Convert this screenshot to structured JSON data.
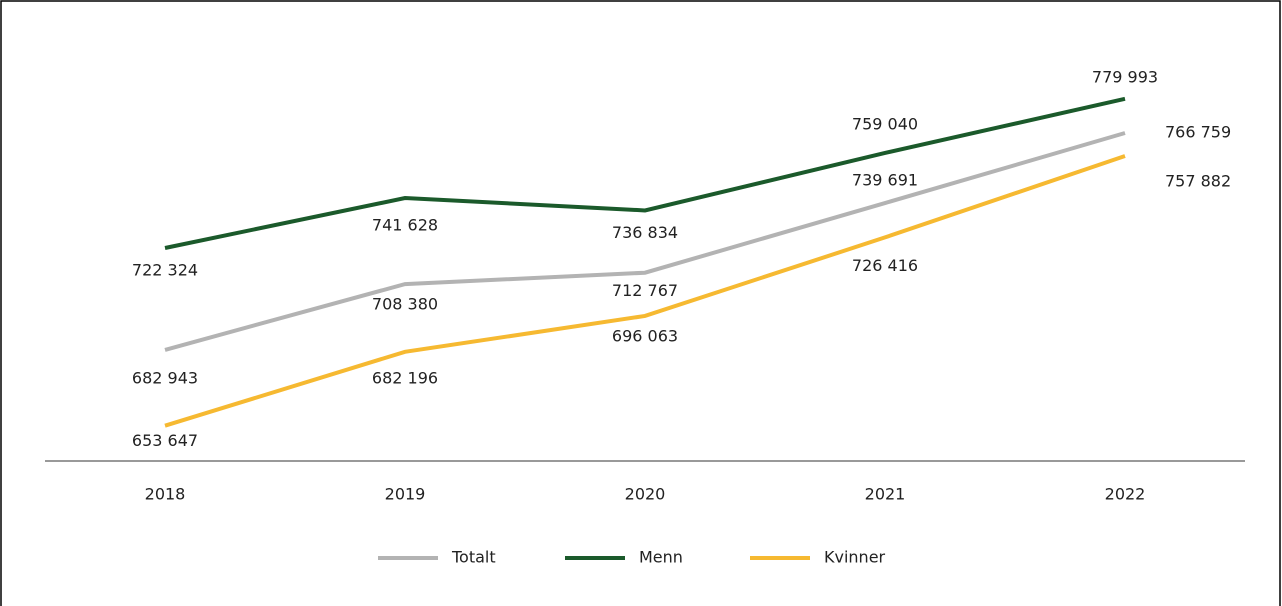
{
  "chart_data": {
    "type": "line",
    "x": [
      "2018",
      "2019",
      "2020",
      "2021",
      "2022"
    ],
    "ylim": [
      640000,
      800000
    ],
    "series": [
      {
        "name": "Totalt",
        "color": "#b3b3b3",
        "values": [
          682943,
          708380,
          712767,
          739691,
          766759
        ],
        "value_labels": [
          "682 943",
          "708 380",
          "712 767",
          "739 691",
          "766 759"
        ]
      },
      {
        "name": "Menn",
        "color": "#1b5a2b",
        "values": [
          722324,
          741628,
          736834,
          759040,
          779993
        ],
        "value_labels": [
          "722 324",
          "741 628",
          "736 834",
          "759 040",
          "779 993"
        ]
      },
      {
        "name": "Kvinner",
        "color": "#f6b931",
        "values": [
          653647,
          682196,
          696063,
          726416,
          757882
        ],
        "value_labels": [
          "653 647",
          "682 196",
          "696 063",
          "726 416",
          "757 882"
        ]
      }
    ],
    "legend": "bottom"
  }
}
